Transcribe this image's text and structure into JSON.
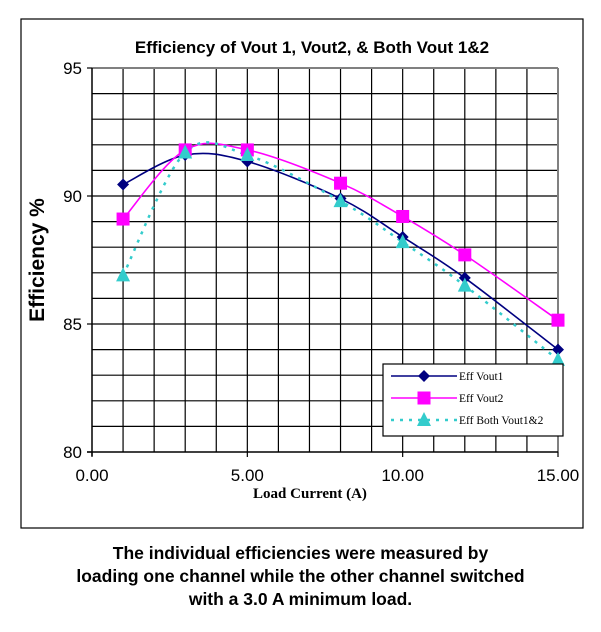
{
  "chart_data": {
    "type": "line",
    "title": "Efficiency of Vout 1, Vout2, & Both Vout 1&2",
    "xlabel": "Load Current (A)",
    "ylabel": "Efficiency %",
    "xlim": [
      0,
      15
    ],
    "ylim": [
      80,
      95
    ],
    "x_ticks": [
      "0.00",
      "5.00",
      "10.00",
      "15.00"
    ],
    "y_ticks": [
      "80",
      "85",
      "90",
      "95"
    ],
    "grid": true,
    "legend_position": "bottom-right",
    "x": [
      1,
      3,
      5,
      8,
      10,
      12,
      15
    ],
    "series": [
      {
        "name": "Eff Vout1",
        "color": "#000080",
        "marker": "diamond",
        "line": "solid",
        "values": [
          90.45,
          91.6,
          91.35,
          89.9,
          88.4,
          86.8,
          84.0
        ]
      },
      {
        "name": "Eff Vout2",
        "color": "#ff00ff",
        "marker": "square",
        "line": "solid",
        "values": [
          89.1,
          91.8,
          91.8,
          90.5,
          89.2,
          87.7,
          85.15
        ]
      },
      {
        "name": "Eff Both Vout1&2",
        "color": "#33cccc",
        "marker": "triangle",
        "line": "dotted",
        "values": [
          86.9,
          91.7,
          91.6,
          89.8,
          88.2,
          86.5,
          83.6
        ]
      }
    ]
  },
  "caption": {
    "lines": [
      "The individual efficiencies were measured by",
      "loading one channel while the other channel switched",
      "with a 3.0 A minimum load."
    ]
  }
}
